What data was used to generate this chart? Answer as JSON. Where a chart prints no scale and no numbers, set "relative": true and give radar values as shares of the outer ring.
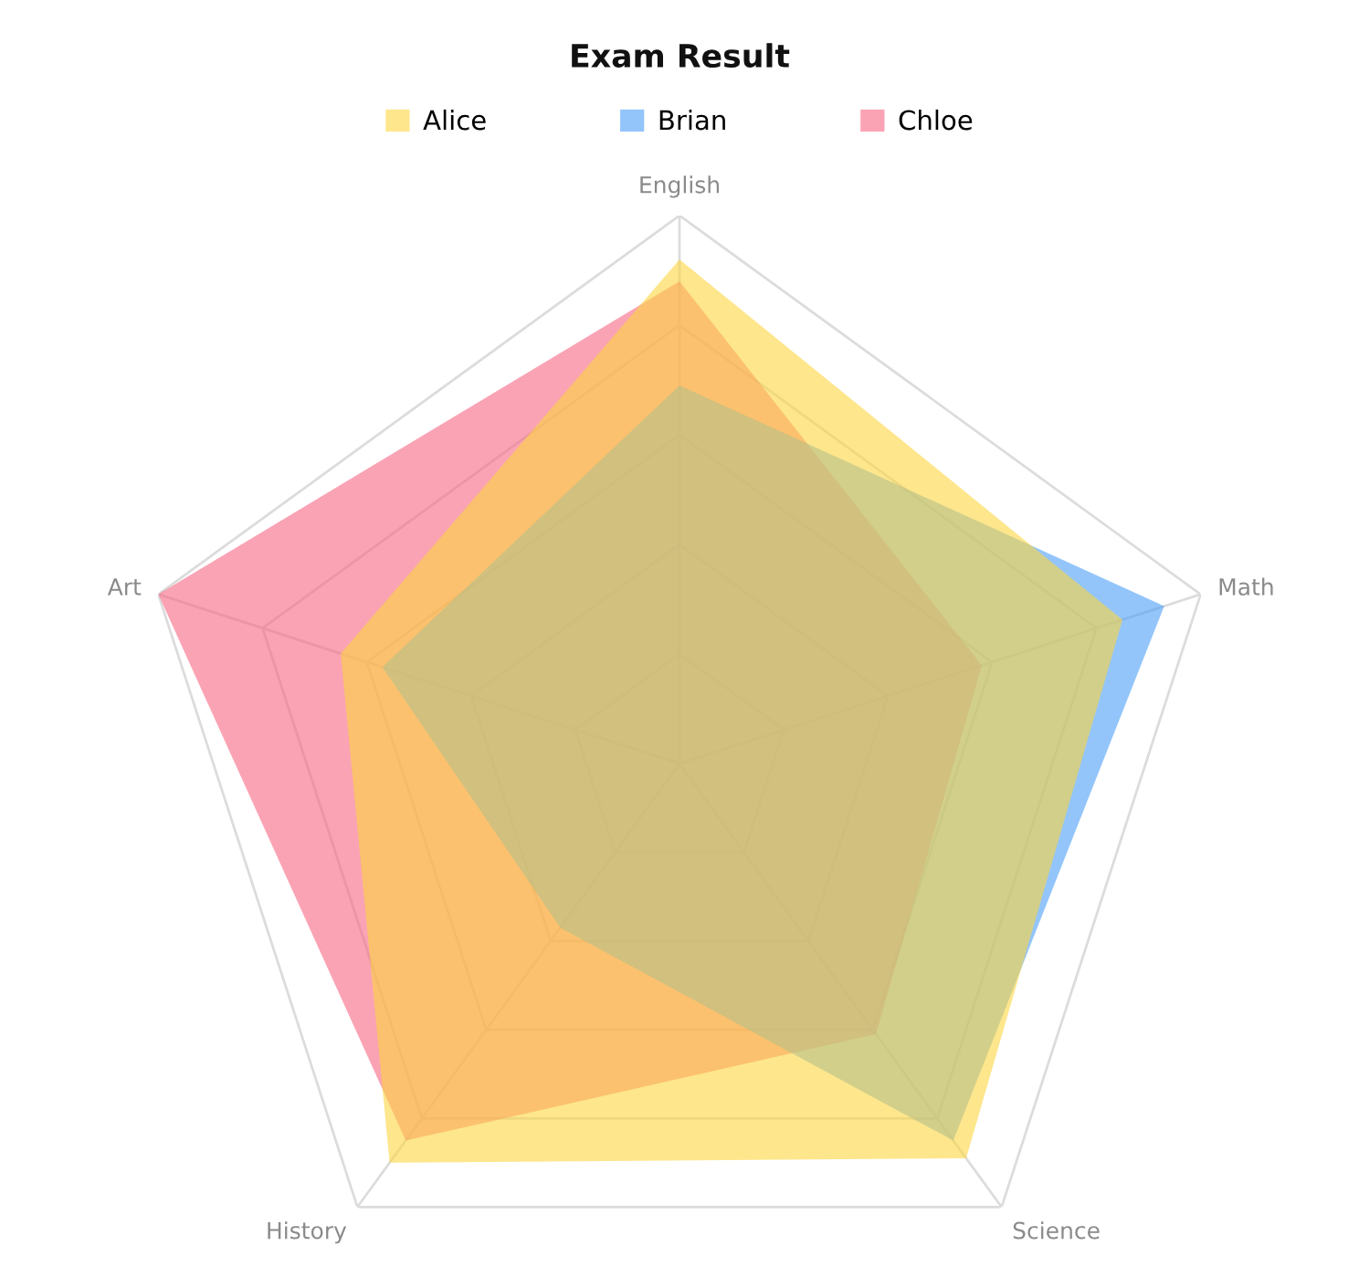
{
  "chart_data": {
    "type": "radar",
    "title": "Exam Result",
    "categories": [
      "English",
      "Math",
      "Science",
      "History",
      "Art"
    ],
    "relative": true,
    "grid": true,
    "legend": "top",
    "series": [
      {
        "name": "Alice",
        "color": "#fcd53f",
        "values": [
          0.92,
          0.85,
          0.89,
          0.9,
          0.65
        ]
      },
      {
        "name": "Brian",
        "color": "#4b9ef7",
        "values": [
          0.69,
          0.93,
          0.85,
          0.37,
          0.57
        ]
      },
      {
        "name": "Chloe",
        "color": "#f76682",
        "values": [
          0.88,
          0.58,
          0.61,
          0.85,
          1.0
        ]
      }
    ]
  }
}
